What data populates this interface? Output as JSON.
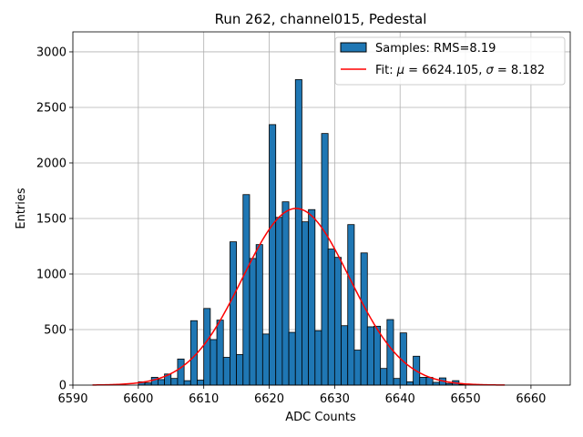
{
  "chart_data": {
    "type": "bar",
    "title": "Run 262, channel015, Pedestal",
    "xlabel": "ADC Counts",
    "ylabel": "Entries",
    "xlim": [
      6590,
      6666
    ],
    "ylim": [
      0,
      3180
    ],
    "xticks": [
      6590,
      6600,
      6610,
      6620,
      6630,
      6640,
      6650,
      6660
    ],
    "yticks": [
      0,
      500,
      1000,
      1500,
      2000,
      2500,
      3000
    ],
    "grid": true,
    "legend_position": "top-right",
    "colors": {
      "bars": "#1f77b4",
      "bar_edge": "#000000",
      "fit": "#ff0000",
      "grid": "#b0b0b0"
    },
    "series": [
      {
        "name": "Samples: RMS=8.19",
        "kind": "histogram",
        "bins": [
          {
            "x": 6600,
            "y": 30
          },
          {
            "x": 6601,
            "y": 20
          },
          {
            "x": 6602,
            "y": 70
          },
          {
            "x": 6603,
            "y": 50
          },
          {
            "x": 6604,
            "y": 100
          },
          {
            "x": 6605,
            "y": 60
          },
          {
            "x": 6606,
            "y": 235
          },
          {
            "x": 6607,
            "y": 40
          },
          {
            "x": 6608,
            "y": 580
          },
          {
            "x": 6609,
            "y": 45
          },
          {
            "x": 6610,
            "y": 690
          },
          {
            "x": 6611,
            "y": 410
          },
          {
            "x": 6612,
            "y": 585
          },
          {
            "x": 6613,
            "y": 250
          },
          {
            "x": 6614,
            "y": 1290
          },
          {
            "x": 6615,
            "y": 275
          },
          {
            "x": 6616,
            "y": 1715
          },
          {
            "x": 6617,
            "y": 1140
          },
          {
            "x": 6618,
            "y": 1265
          },
          {
            "x": 6619,
            "y": 460
          },
          {
            "x": 6620,
            "y": 2345
          },
          {
            "x": 6621,
            "y": 1510
          },
          {
            "x": 6622,
            "y": 1650
          },
          {
            "x": 6623,
            "y": 475
          },
          {
            "x": 6624,
            "y": 2750
          },
          {
            "x": 6625,
            "y": 1470
          },
          {
            "x": 6626,
            "y": 1580
          },
          {
            "x": 6627,
            "y": 490
          },
          {
            "x": 6628,
            "y": 2265
          },
          {
            "x": 6629,
            "y": 1225
          },
          {
            "x": 6630,
            "y": 1150
          },
          {
            "x": 6631,
            "y": 535
          },
          {
            "x": 6632,
            "y": 1445
          },
          {
            "x": 6633,
            "y": 315
          },
          {
            "x": 6634,
            "y": 1190
          },
          {
            "x": 6635,
            "y": 525
          },
          {
            "x": 6636,
            "y": 530
          },
          {
            "x": 6637,
            "y": 150
          },
          {
            "x": 6638,
            "y": 590
          },
          {
            "x": 6639,
            "y": 60
          },
          {
            "x": 6640,
            "y": 470
          },
          {
            "x": 6641,
            "y": 30
          },
          {
            "x": 6642,
            "y": 260
          },
          {
            "x": 6643,
            "y": 70
          },
          {
            "x": 6644,
            "y": 70
          },
          {
            "x": 6645,
            "y": 25
          },
          {
            "x": 6646,
            "y": 65
          },
          {
            "x": 6647,
            "y": 15
          },
          {
            "x": 6648,
            "y": 40
          },
          {
            "x": 6649,
            "y": 5
          }
        ]
      },
      {
        "name_prefix": "Fit: ",
        "mu_symbol": "μ",
        "name_mid": " = 6624.105, ",
        "sigma_symbol": "σ",
        "name_suffix": " = 8.182",
        "kind": "gaussian",
        "mu": 6624.105,
        "sigma": 8.182,
        "amplitude": 1590,
        "x_range": [
          6593,
          6656
        ]
      }
    ]
  }
}
